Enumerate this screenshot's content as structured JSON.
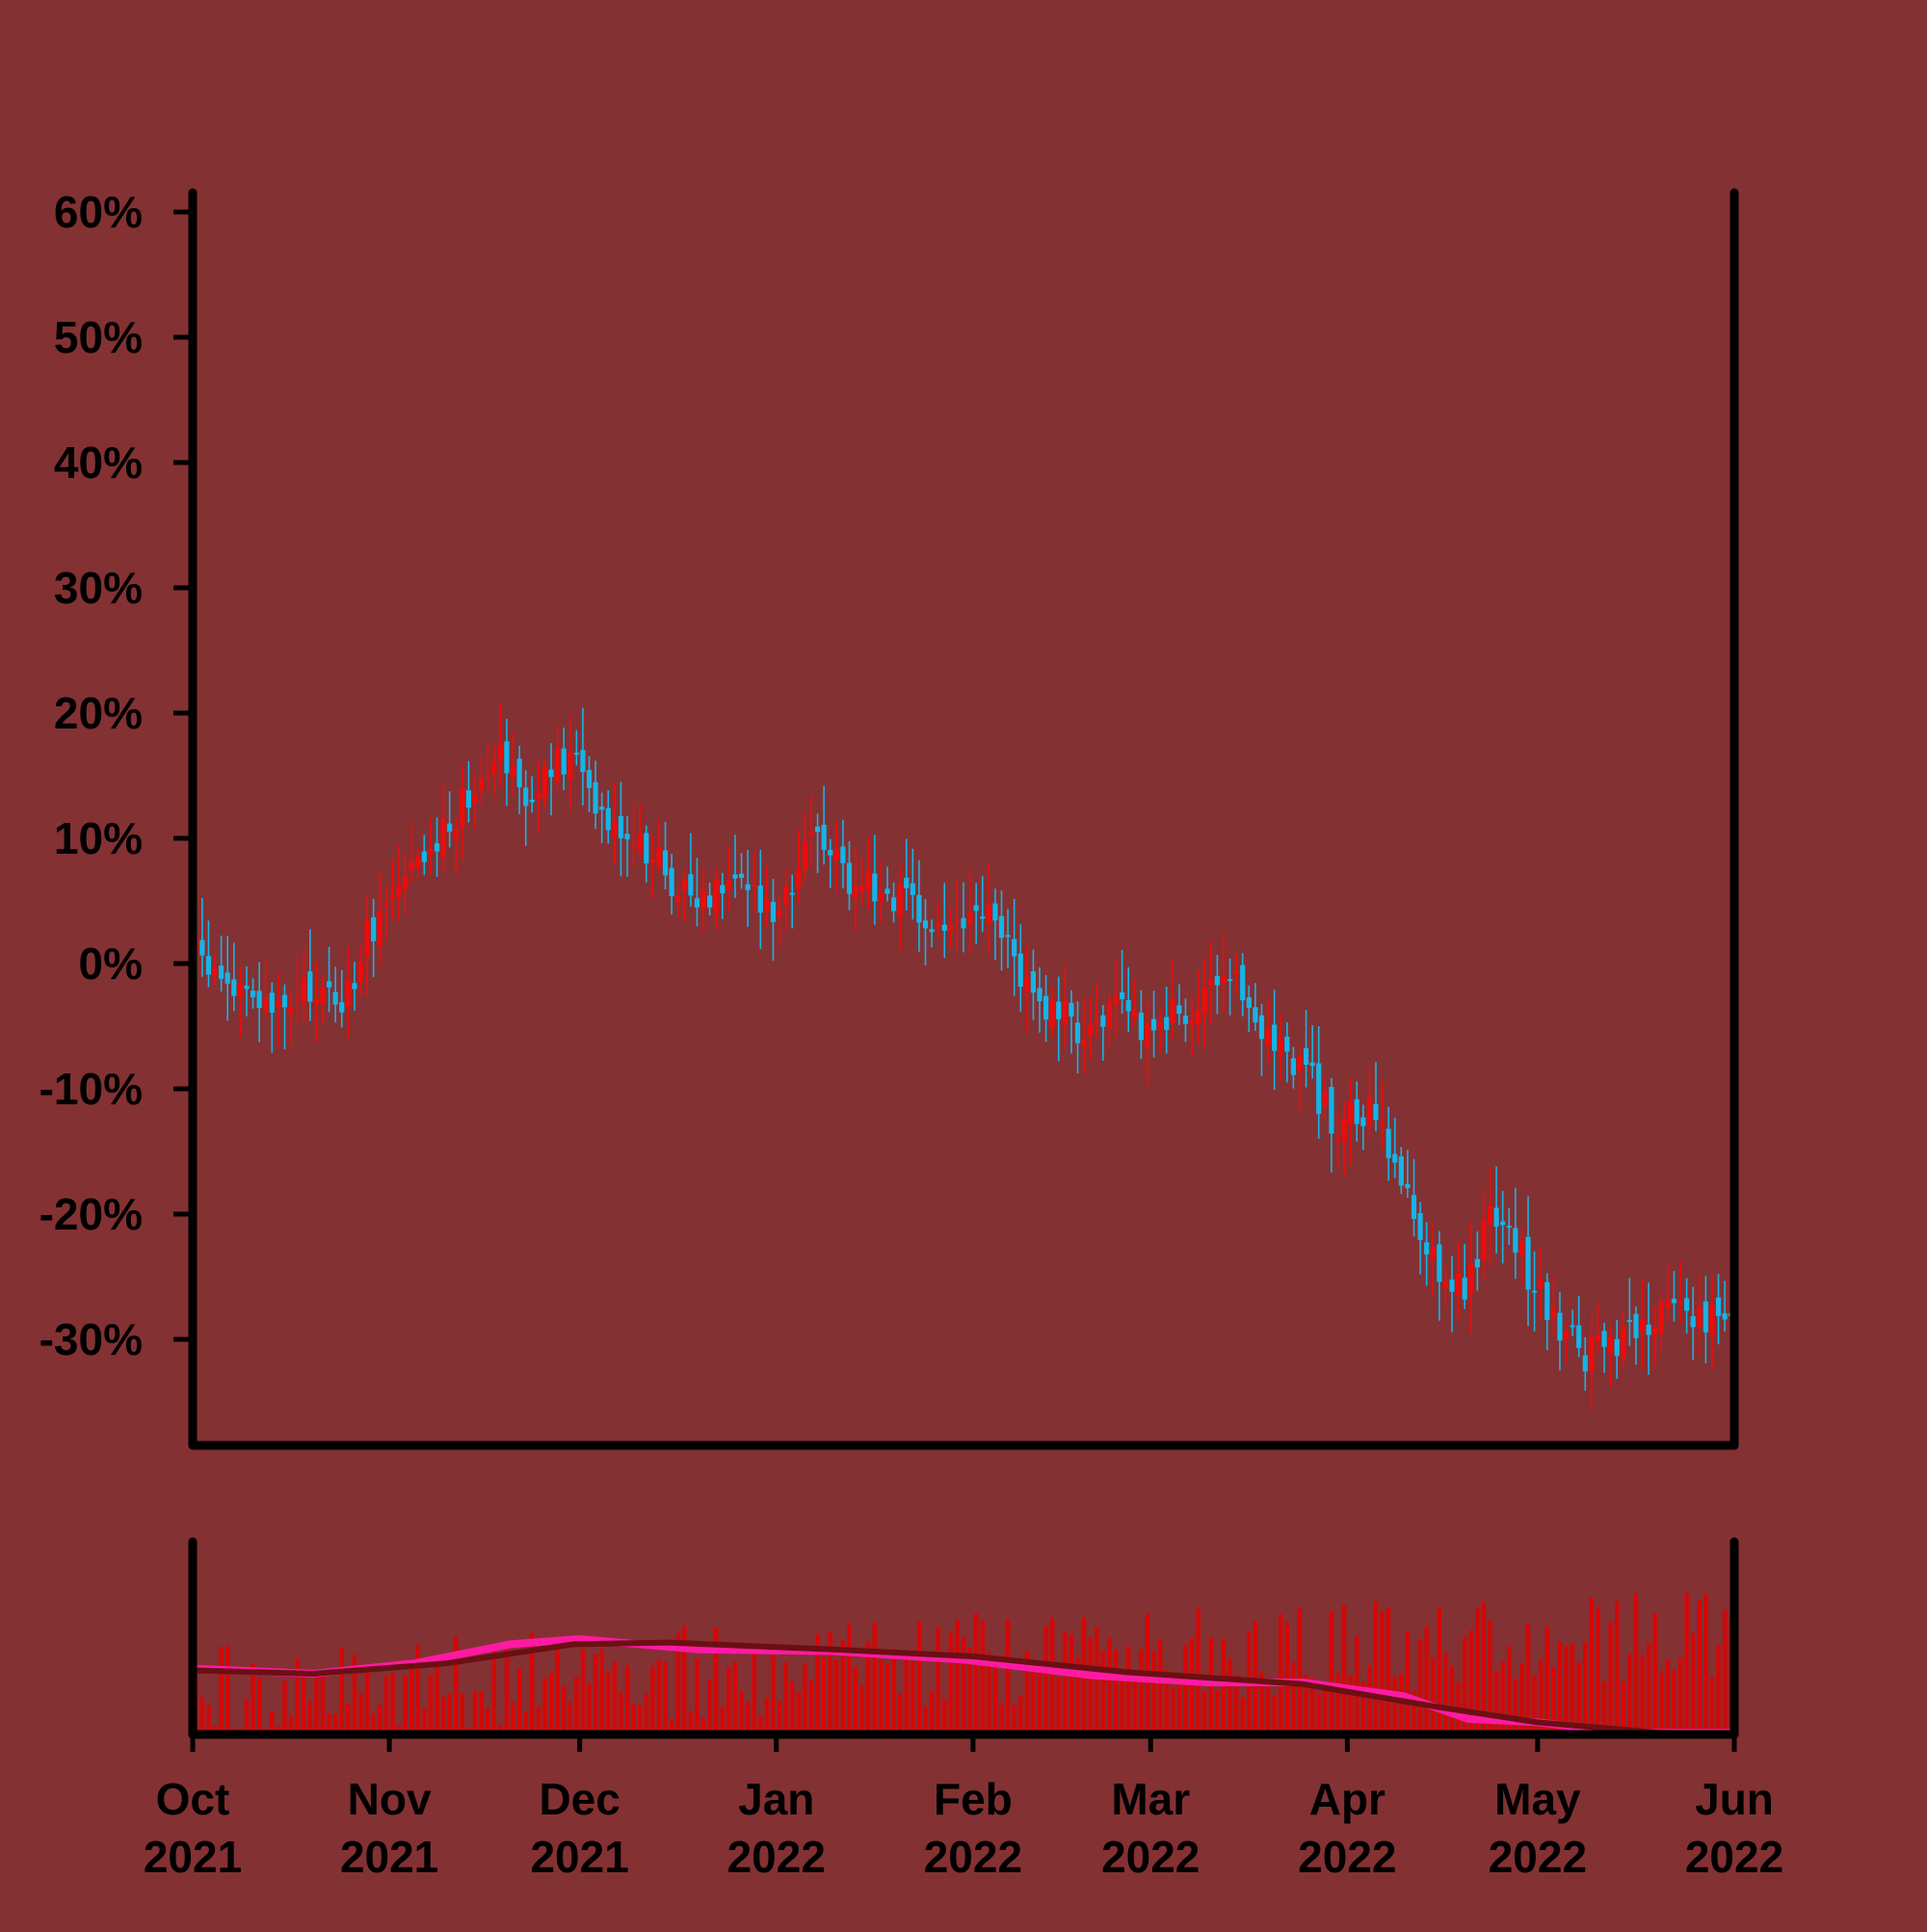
{
  "chart_data": {
    "type": "candlestick",
    "title": "",
    "xlabel": "",
    "ylabel": "",
    "y_unit": "%",
    "ylim": [
      -38,
      61
    ],
    "y_ticks": [
      {
        "value": 60,
        "label": "60%"
      },
      {
        "value": 50,
        "label": "50%"
      },
      {
        "value": 40,
        "label": "40%"
      },
      {
        "value": 30,
        "label": "30%"
      },
      {
        "value": 20,
        "label": "20%"
      },
      {
        "value": 10,
        "label": "10%"
      },
      {
        "value": 0,
        "label": "0%"
      },
      {
        "value": -10,
        "label": "-10%"
      },
      {
        "value": -20,
        "label": "-20%"
      },
      {
        "value": -30,
        "label": "-30%"
      }
    ],
    "x_range": [
      "2021-10-01",
      "2022-06-01"
    ],
    "x_ticks": [
      {
        "date": "2021-10-01",
        "month": "Oct",
        "year": "2021"
      },
      {
        "date": "2021-11-01",
        "month": "Nov",
        "year": "2021"
      },
      {
        "date": "2021-12-01",
        "month": "Dec",
        "year": "2021"
      },
      {
        "date": "2022-01-01",
        "month": "Jan",
        "year": "2022"
      },
      {
        "date": "2022-02-01",
        "month": "Feb",
        "year": "2022"
      },
      {
        "date": "2022-03-01",
        "month": "Mar",
        "year": "2022"
      },
      {
        "date": "2022-04-01",
        "month": "Apr",
        "year": "2022"
      },
      {
        "date": "2022-05-01",
        "month": "May",
        "year": "2022"
      },
      {
        "date": "2022-06-01",
        "month": "Jun",
        "year": "2022"
      }
    ],
    "price_path": [
      {
        "date": "2021-10-01",
        "value": 1
      },
      {
        "date": "2021-10-05",
        "value": -1
      },
      {
        "date": "2021-10-10",
        "value": -3
      },
      {
        "date": "2021-10-15",
        "value": -4
      },
      {
        "date": "2021-10-20",
        "value": -2
      },
      {
        "date": "2021-10-25",
        "value": -3
      },
      {
        "date": "2021-10-30",
        "value": 4
      },
      {
        "date": "2021-11-05",
        "value": 7
      },
      {
        "date": "2021-11-10",
        "value": 11
      },
      {
        "date": "2021-11-15",
        "value": 15
      },
      {
        "date": "2021-11-18",
        "value": 18
      },
      {
        "date": "2021-11-23",
        "value": 13
      },
      {
        "date": "2021-11-28",
        "value": 16
      },
      {
        "date": "2021-12-01",
        "value": 16
      },
      {
        "date": "2021-12-05",
        "value": 12
      },
      {
        "date": "2021-12-10",
        "value": 10
      },
      {
        "date": "2021-12-15",
        "value": 7
      },
      {
        "date": "2021-12-20",
        "value": 5
      },
      {
        "date": "2021-12-25",
        "value": 8
      },
      {
        "date": "2021-12-30",
        "value": 4
      },
      {
        "date": "2022-01-04",
        "value": 7
      },
      {
        "date": "2022-01-08",
        "value": 11
      },
      {
        "date": "2022-01-12",
        "value": 7
      },
      {
        "date": "2022-01-18",
        "value": 6
      },
      {
        "date": "2022-01-25",
        "value": 3
      },
      {
        "date": "2022-01-31",
        "value": 3
      },
      {
        "date": "2022-02-03",
        "value": 4
      },
      {
        "date": "2022-02-08",
        "value": 0
      },
      {
        "date": "2022-02-13",
        "value": -4
      },
      {
        "date": "2022-02-18",
        "value": -5
      },
      {
        "date": "2022-02-23",
        "value": -4
      },
      {
        "date": "2022-02-28",
        "value": -5
      },
      {
        "date": "2022-03-05",
        "value": -4
      },
      {
        "date": "2022-03-10",
        "value": -3
      },
      {
        "date": "2022-03-15",
        "value": -2
      },
      {
        "date": "2022-03-20",
        "value": -6
      },
      {
        "date": "2022-03-25",
        "value": -8
      },
      {
        "date": "2022-03-30",
        "value": -13
      },
      {
        "date": "2022-04-05",
        "value": -12
      },
      {
        "date": "2022-04-10",
        "value": -18
      },
      {
        "date": "2022-04-15",
        "value": -24
      },
      {
        "date": "2022-04-20",
        "value": -26
      },
      {
        "date": "2022-04-24",
        "value": -19
      },
      {
        "date": "2022-04-28",
        "value": -23
      },
      {
        "date": "2022-05-03",
        "value": -28
      },
      {
        "date": "2022-05-08",
        "value": -31
      },
      {
        "date": "2022-05-13",
        "value": -31
      },
      {
        "date": "2022-05-18",
        "value": -29
      },
      {
        "date": "2022-05-23",
        "value": -27
      },
      {
        "date": "2022-05-27",
        "value": -28
      },
      {
        "date": "2022-05-31",
        "value": -28
      }
    ],
    "volume_average_curves": {
      "short": [
        {
          "date": "2021-10-01",
          "value": 0.38
        },
        {
          "date": "2021-10-20",
          "value": 0.35
        },
        {
          "date": "2021-11-05",
          "value": 0.41
        },
        {
          "date": "2021-11-20",
          "value": 0.52
        },
        {
          "date": "2021-12-01",
          "value": 0.55
        },
        {
          "date": "2021-12-20",
          "value": 0.49
        },
        {
          "date": "2022-01-10",
          "value": 0.48
        },
        {
          "date": "2022-01-31",
          "value": 0.43
        },
        {
          "date": "2022-02-20",
          "value": 0.34
        },
        {
          "date": "2022-03-10",
          "value": 0.3
        },
        {
          "date": "2022-03-25",
          "value": 0.3
        },
        {
          "date": "2022-04-10",
          "value": 0.22
        },
        {
          "date": "2022-04-20",
          "value": 0.09
        },
        {
          "date": "2022-05-01",
          "value": 0.07
        },
        {
          "date": "2022-05-15",
          "value": 0.01
        },
        {
          "date": "2022-06-01",
          "value": 0.01
        }
      ],
      "long": [
        {
          "date": "2021-10-01",
          "value": 0.37
        },
        {
          "date": "2021-10-20",
          "value": 0.35
        },
        {
          "date": "2021-11-10",
          "value": 0.41
        },
        {
          "date": "2021-11-30",
          "value": 0.52
        },
        {
          "date": "2021-12-15",
          "value": 0.53
        },
        {
          "date": "2022-01-10",
          "value": 0.49
        },
        {
          "date": "2022-02-01",
          "value": 0.45
        },
        {
          "date": "2022-02-25",
          "value": 0.36
        },
        {
          "date": "2022-03-25",
          "value": 0.29
        },
        {
          "date": "2022-04-15",
          "value": 0.16
        },
        {
          "date": "2022-05-01",
          "value": 0.07
        },
        {
          "date": "2022-05-20",
          "value": 0.01
        },
        {
          "date": "2022-06-01",
          "value": 0
        }
      ]
    },
    "colors": {
      "background": "#843133",
      "up_candle": "#ee0b0b",
      "down_candle": "#16b4e6",
      "volume_bars": "#d60606",
      "volume_avg_short": "#ff1aa3",
      "volume_avg_long": "#6c0f14",
      "axes": "#000000"
    },
    "grid": false,
    "legend": "none"
  }
}
